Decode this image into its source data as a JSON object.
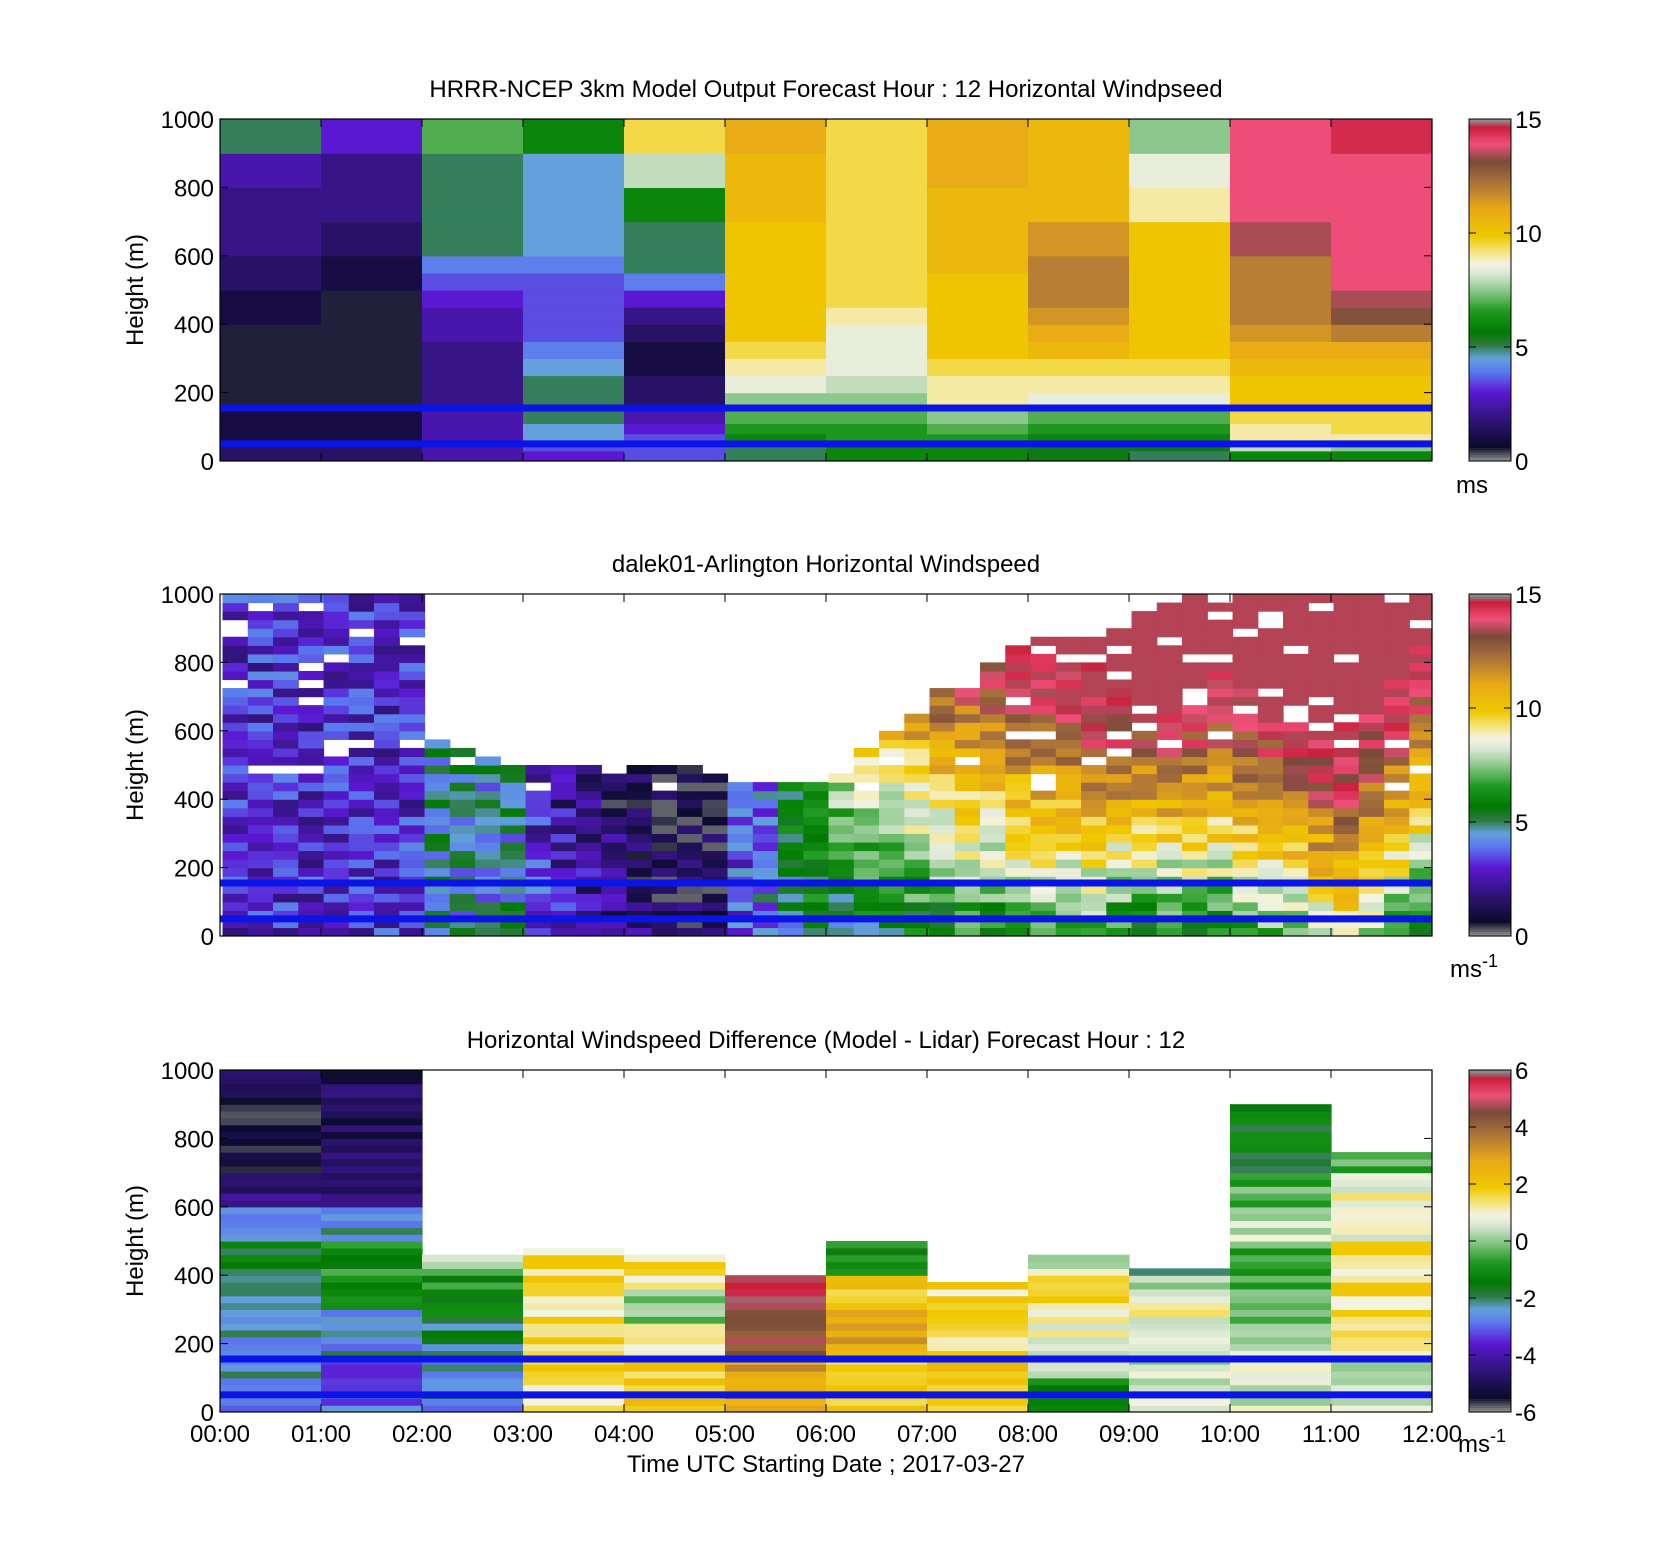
{
  "chart_data": [
    {
      "type": "heatmap",
      "title": "HRRR-NCEP 3km Model Output   Forecast Hour : 12 Horizontal Windpseed",
      "ylabel": "Height (m)",
      "ylim": [
        0,
        1000
      ],
      "yticks": [
        "0",
        "200",
        "400",
        "600",
        "800",
        "1000"
      ],
      "x_hours": [
        0,
        1,
        2,
        3,
        4,
        5,
        6,
        7,
        8,
        9,
        10,
        11,
        12
      ],
      "reference_lines_m": [
        155,
        50
      ],
      "colorbar": {
        "min": 0,
        "max": 15,
        "ticks": [
          "0",
          "5",
          "10",
          "15"
        ],
        "unit": "ms",
        "unit_exp": ""
      },
      "y_levels_m": [
        0,
        30,
        50,
        80,
        110,
        150,
        200,
        250,
        300,
        350,
        400,
        450,
        500,
        550,
        600,
        700,
        800,
        900,
        1000
      ],
      "values": [
        [
          1.5,
          1.5,
          2.5,
          3.0,
          3.5,
          5.0,
          6.0,
          6.0,
          5.5,
          5.0,
          6.0,
          6.0
        ],
        [
          1.5,
          1.5,
          2.5,
          3.5,
          3.5,
          5.0,
          6.0,
          6.0,
          5.5,
          5.5,
          8.0,
          7.5
        ],
        [
          1.0,
          1.0,
          2.5,
          4.5,
          3.5,
          6.0,
          6.5,
          6.5,
          6.0,
          6.0,
          9.0,
          9.0
        ],
        [
          1.0,
          1.0,
          2.5,
          4.5,
          3.0,
          6.5,
          6.5,
          7.0,
          6.5,
          6.5,
          9.0,
          9.5
        ],
        [
          1.0,
          1.0,
          2.5,
          5.0,
          2.5,
          7.0,
          7.0,
          7.5,
          7.0,
          7.0,
          9.5,
          9.5
        ],
        [
          0.5,
          0.5,
          2.0,
          5.0,
          1.5,
          7.5,
          7.5,
          9.0,
          8.5,
          8.5,
          10.0,
          10.0
        ],
        [
          0.5,
          0.5,
          2.0,
          5.0,
          1.5,
          8.5,
          8.0,
          9.0,
          9.0,
          9.0,
          10.0,
          10.0
        ],
        [
          0.5,
          0.5,
          2.0,
          4.5,
          1.0,
          9.0,
          8.5,
          9.5,
          9.5,
          9.5,
          10.5,
          10.5
        ],
        [
          0.5,
          0.5,
          2.0,
          4.0,
          1.0,
          9.5,
          8.5,
          10.0,
          10.5,
          10.0,
          11.0,
          11.0
        ],
        [
          0.5,
          0.5,
          2.5,
          3.5,
          1.5,
          10.0,
          8.5,
          10.0,
          11.0,
          10.0,
          11.5,
          12.0
        ],
        [
          1.0,
          0.5,
          2.5,
          3.5,
          2.0,
          10.0,
          9.0,
          10.0,
          11.5,
          10.0,
          12.0,
          13.0
        ],
        [
          1.0,
          0.5,
          3.0,
          3.5,
          3.0,
          10.0,
          9.5,
          10.0,
          12.0,
          10.0,
          12.0,
          13.5
        ],
        [
          1.5,
          1.0,
          3.5,
          3.5,
          4.0,
          10.0,
          9.5,
          10.0,
          12.0,
          10.0,
          12.0,
          14.0
        ],
        [
          1.5,
          1.0,
          4.0,
          4.0,
          5.0,
          10.0,
          9.5,
          10.5,
          12.0,
          10.0,
          12.0,
          14.0
        ],
        [
          2.0,
          1.5,
          5.0,
          4.5,
          5.0,
          10.0,
          9.5,
          10.5,
          11.5,
          10.0,
          13.5,
          14.0
        ],
        [
          2.0,
          2.0,
          5.0,
          4.5,
          6.0,
          10.5,
          9.5,
          10.5,
          10.5,
          9.0,
          14.0,
          14.0
        ],
        [
          2.5,
          2.0,
          5.0,
          4.5,
          8.0,
          10.5,
          9.5,
          11.0,
          10.5,
          8.5,
          14.0,
          14.0
        ],
        [
          5.0,
          3.0,
          7.0,
          6.0,
          9.5,
          11.0,
          9.5,
          11.0,
          10.5,
          7.5,
          14.0,
          14.5
        ]
      ]
    },
    {
      "type": "heatmap",
      "title": "dalek01-Arlington  Horizontal Windspeed",
      "ylabel": "Height (m)",
      "ylim": [
        0,
        1000
      ],
      "yticks": [
        "0",
        "200",
        "400",
        "600",
        "800",
        "1000"
      ],
      "x_hours": [
        0,
        1,
        2,
        3,
        4,
        5,
        6,
        7,
        8,
        9,
        10,
        11,
        12
      ],
      "reference_lines_m": [
        155,
        50
      ],
      "colorbar": {
        "min": 0,
        "max": 15,
        "ticks": [
          "0",
          "5",
          "10",
          "15"
        ],
        "unit": "ms",
        "unit_exp": "-1"
      },
      "profile_hours": [
        0.15,
        0.4,
        0.65,
        0.9,
        1.15,
        1.4,
        1.65,
        1.9,
        2.15,
        2.4,
        2.65,
        2.9,
        3.15,
        3.4,
        3.65,
        3.9,
        4.15,
        4.4,
        4.65,
        4.9,
        5.15,
        5.4,
        5.65,
        5.9,
        6.15,
        6.4,
        6.65,
        6.9,
        7.15,
        7.4,
        7.65,
        7.9,
        8.15,
        8.4,
        8.65,
        8.9,
        9.15,
        9.4,
        9.65,
        9.9,
        10.15,
        10.4,
        10.65,
        10.9,
        11.15,
        11.4,
        11.65,
        11.9
      ],
      "profile_width_hours": 0.25,
      "bin_m": 25,
      "profile_top_m": [
        1000,
        1000,
        1000,
        1000,
        1000,
        1000,
        1000,
        1000,
        560,
        540,
        520,
        510,
        500,
        500,
        490,
        490,
        480,
        500,
        480,
        470,
        450,
        440,
        430,
        450,
        500,
        550,
        600,
        700,
        720,
        760,
        800,
        850,
        860,
        880,
        860,
        900,
        950,
        970,
        980,
        1000,
        1000,
        1000,
        1000,
        1000,
        1000,
        1000,
        1000,
        1000
      ],
      "surface_ms": [
        3.0,
        3.0,
        3.0,
        3.0,
        3.0,
        3.0,
        3.0,
        3.0,
        4.5,
        4.5,
        4.5,
        4.5,
        3.5,
        3.0,
        2.5,
        2.0,
        1.5,
        1.0,
        1.0,
        1.0,
        3.5,
        4.0,
        4.5,
        5.0,
        5.0,
        5.0,
        5.0,
        5.5,
        5.5,
        6.0,
        6.0,
        6.5,
        6.5,
        6.5,
        6.5,
        6.0,
        6.0,
        6.0,
        6.0,
        6.0,
        6.5,
        7.0,
        7.5,
        8.0,
        8.5,
        7.5,
        6.5,
        5.5
      ],
      "gradient_ms_per_m": [
        0.0,
        0.0,
        0.0,
        0.0,
        0.0,
        0.0,
        0.0,
        0.0,
        0.0,
        0.0,
        0.0,
        0.0,
        -0.002,
        -0.002,
        -0.002,
        -0.002,
        -0.001,
        -0.001,
        -0.001,
        -0.001,
        0.0,
        0.0,
        0.003,
        0.005,
        0.007,
        0.008,
        0.009,
        0.009,
        0.01,
        0.01,
        0.01,
        0.01,
        0.011,
        0.011,
        0.012,
        0.013,
        0.013,
        0.013,
        0.013,
        0.012,
        0.012,
        0.012,
        0.012,
        0.012,
        0.012,
        0.012,
        0.012,
        0.012
      ]
    },
    {
      "type": "heatmap",
      "title": "Horizontal Windspeed Difference (Model - Lidar) Forecast Hour : 12",
      "xlabel": "Time UTC  Starting Date ; 2017-03-27",
      "ylabel": "Height (m)",
      "ylim": [
        0,
        1000
      ],
      "yticks": [
        "0",
        "200",
        "400",
        "600",
        "800",
        "1000"
      ],
      "xticks": [
        "00:00",
        "01:00",
        "02:00",
        "03:00",
        "04:00",
        "05:00",
        "06:00",
        "07:00",
        "08:00",
        "09:00",
        "10:00",
        "11:00",
        "12:00"
      ],
      "x_hours": [
        0,
        1,
        2,
        3,
        4,
        5,
        6,
        7,
        8,
        9,
        10,
        11,
        12
      ],
      "reference_lines_m": [
        155,
        50
      ],
      "colorbar": {
        "min": -6,
        "max": 6,
        "ticks": [
          "-6",
          "-4",
          "-2",
          "0",
          "2",
          "4",
          "6"
        ],
        "unit": "ms",
        "unit_exp": "-1"
      },
      "hour_blocks": [
        {
          "top_m": 1000,
          "levels": [
            [
              0,
              -2.5
            ],
            [
              200,
              -2.5
            ],
            [
              300,
              -2.0
            ],
            [
              400,
              -1.5
            ],
            [
              500,
              -2.5
            ],
            [
              600,
              -4.5
            ],
            [
              700,
              -5.5
            ],
            [
              800,
              -5.5
            ],
            [
              900,
              -5.0
            ]
          ]
        },
        {
          "top_m": 1000,
          "levels": [
            [
              0,
              -3.0
            ],
            [
              150,
              -2.5
            ],
            [
              300,
              -1.0
            ],
            [
              400,
              -1.0
            ],
            [
              500,
              -2.5
            ],
            [
              600,
              -4.5
            ],
            [
              700,
              -5.0
            ],
            [
              800,
              -5.0
            ],
            [
              900,
              -5.0
            ]
          ]
        },
        {
          "top_m": 450,
          "levels": [
            [
              0,
              -2.5
            ],
            [
              150,
              -2.0
            ],
            [
              250,
              -1.5
            ],
            [
              350,
              -1.0
            ],
            [
              400,
              0.0
            ]
          ]
        },
        {
          "top_m": 470,
          "levels": [
            [
              0,
              1.5
            ],
            [
              150,
              1.5
            ],
            [
              300,
              1.5
            ],
            [
              400,
              1.5
            ]
          ]
        },
        {
          "top_m": 460,
          "levels": [
            [
              0,
              2.0
            ],
            [
              150,
              1.0
            ],
            [
              250,
              0.0
            ],
            [
              350,
              1.0
            ],
            [
              400,
              1.5
            ]
          ]
        },
        {
          "top_m": 400,
          "levels": [
            [
              0,
              3.0
            ],
            [
              150,
              4.5
            ],
            [
              250,
              4.5
            ],
            [
              310,
              6.0
            ]
          ]
        },
        {
          "top_m": 500,
          "levels": [
            [
              0,
              2.0
            ],
            [
              150,
              2.0
            ],
            [
              200,
              3.0
            ],
            [
              300,
              2.0
            ],
            [
              400,
              -0.5
            ],
            [
              450,
              -1.0
            ]
          ]
        },
        {
          "top_m": 380,
          "levels": [
            [
              0,
              2.0
            ],
            [
              150,
              1.5
            ],
            [
              250,
              1.5
            ],
            [
              350,
              2.0
            ]
          ]
        },
        {
          "top_m": 450,
          "levels": [
            [
              0,
              -1.0
            ],
            [
              100,
              0.5
            ],
            [
              200,
              1.0
            ],
            [
              300,
              1.5
            ],
            [
              400,
              0.5
            ]
          ]
        },
        {
          "top_m": 420,
          "levels": [
            [
              0,
              0.5
            ],
            [
              150,
              1.0
            ],
            [
              250,
              1.0
            ],
            [
              350,
              0.5
            ],
            [
              400,
              -2.0
            ]
          ]
        },
        {
          "top_m": 900,
          "levels": [
            [
              0,
              0.5
            ],
            [
              150,
              0.5
            ],
            [
              250,
              -0.5
            ],
            [
              350,
              -0.5
            ],
            [
              500,
              0.5
            ],
            [
              600,
              -0.5
            ],
            [
              700,
              -1.5
            ]
          ]
        },
        {
          "top_m": 760,
          "levels": [
            [
              0,
              0.5
            ],
            [
              150,
              1.5
            ],
            [
              250,
              1.5
            ],
            [
              350,
              1.5
            ],
            [
              500,
              1.0
            ],
            [
              650,
              0.5
            ],
            [
              700,
              -0.5
            ]
          ]
        }
      ]
    }
  ],
  "colormap_stops": [
    [
      0.0,
      "#8c8c8c"
    ],
    [
      0.04,
      "#0a0a2a"
    ],
    [
      0.12,
      "#301478"
    ],
    [
      0.2,
      "#5a18d2"
    ],
    [
      0.26,
      "#5a78ee"
    ],
    [
      0.3,
      "#64a0dc"
    ],
    [
      0.34,
      "#2c7a40"
    ],
    [
      0.38,
      "#007a00"
    ],
    [
      0.44,
      "#209a20"
    ],
    [
      0.5,
      "#8cc88c"
    ],
    [
      0.55,
      "#dce8d4"
    ],
    [
      0.58,
      "#f3f3e0"
    ],
    [
      0.62,
      "#f5e06c"
    ],
    [
      0.66,
      "#f0c800"
    ],
    [
      0.74,
      "#e8a818"
    ],
    [
      0.82,
      "#a8703c"
    ],
    [
      0.88,
      "#7a4a3a"
    ],
    [
      0.93,
      "#f0507a"
    ],
    [
      0.98,
      "#c81e3a"
    ],
    [
      1.0,
      "#8c8c8c"
    ]
  ]
}
